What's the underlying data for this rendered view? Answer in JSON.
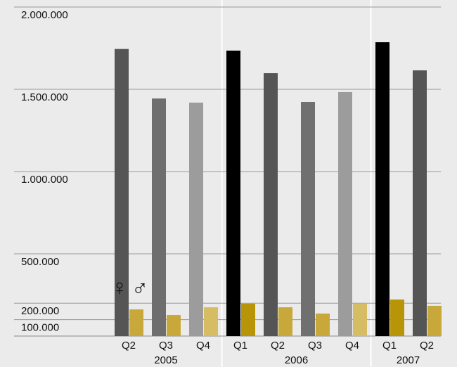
{
  "chart_data": {
    "type": "bar",
    "groups": [
      {
        "label": "2005",
        "categories": [
          "Q2",
          "Q3",
          "Q4"
        ]
      },
      {
        "label": "2006",
        "categories": [
          "Q1",
          "Q2",
          "Q3",
          "Q4"
        ]
      },
      {
        "label": "2007",
        "categories": [
          "Q1",
          "Q2"
        ]
      }
    ],
    "series": [
      {
        "name": "♀",
        "colors": [
          "#555555",
          "#6e6e6e",
          "#9c9c9c",
          "#000000",
          "#555555",
          "#707070",
          "#9c9c9c",
          "#000000",
          "#555555"
        ],
        "values": [
          1745000,
          1444000,
          1419000,
          1735000,
          1598000,
          1423000,
          1483000,
          1786000,
          1615000
        ]
      },
      {
        "name": "♂",
        "colors": [
          "#c8a83a",
          "#c8a83a",
          "#d6bc62",
          "#b89508",
          "#c8a83a",
          "#c8a83a",
          "#d6bc62",
          "#b89508",
          "#c8a83a"
        ],
        "values": [
          162000,
          128000,
          175000,
          197000,
          175000,
          137000,
          197000,
          222000,
          184000
        ]
      }
    ],
    "ylim": [
      0,
      2000000
    ],
    "yticks": [
      {
        "value": 100000,
        "label": "100.000"
      },
      {
        "value": 200000,
        "label": "200.000"
      },
      {
        "value": 500000,
        "label": "500.000"
      },
      {
        "value": 1000000,
        "label": "1.000.000"
      },
      {
        "value": 1500000,
        "label": "1.500.000"
      },
      {
        "value": 2000000,
        "label": "2.000.000"
      }
    ],
    "grid": true
  }
}
